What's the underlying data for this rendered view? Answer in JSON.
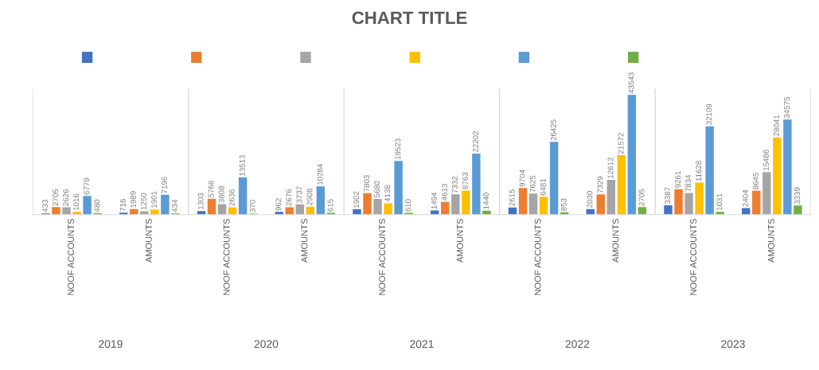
{
  "chart_data": {
    "type": "bar",
    "title": "CHART TITLE",
    "categories": [
      "NOOF ACCOUNTS",
      "AMOUNTS",
      "NOOF ACCOUNTS",
      "AMOUNTS",
      "NOOF ACCOUNTS",
      "AMOUNTS",
      "NOOF ACCOUNTS",
      "AMOUNTS",
      "NOOF ACCOUNTS",
      "AMOUNTS"
    ],
    "series": [
      {
        "color": "#4472c4",
        "values": [
          433,
          716,
          1303,
          962,
          1902,
          1494,
          2615,
          2030,
          3387,
          2404
        ]
      },
      {
        "color": "#ed7d31",
        "values": [
          2705,
          1989,
          5766,
          2676,
          7803,
          4613,
          9704,
          7329,
          9261,
          8645
        ]
      },
      {
        "color": "#a5a5a5",
        "values": [
          2626,
          1250,
          3808,
          3737,
          5680,
          7332,
          7625,
          12612,
          7834,
          15486
        ]
      },
      {
        "color": "#ffc000",
        "values": [
          1016,
          1901,
          2636,
          2908,
          4138,
          8763,
          6481,
          21572,
          11628,
          28041
        ]
      },
      {
        "color": "#5b9bd5",
        "values": [
          6779,
          7196,
          13513,
          10284,
          19523,
          22202,
          26425,
          43543,
          32109,
          34575
        ]
      },
      {
        "color": "#70ad47",
        "values": [
          480,
          434,
          370,
          615,
          610,
          1440,
          853,
          2705,
          1031,
          3339
        ]
      }
    ],
    "annotations": [
      "2019",
      "2020",
      "2021",
      "2022",
      "2023"
    ],
    "data_labels": true,
    "tick_labels": "x"
  }
}
